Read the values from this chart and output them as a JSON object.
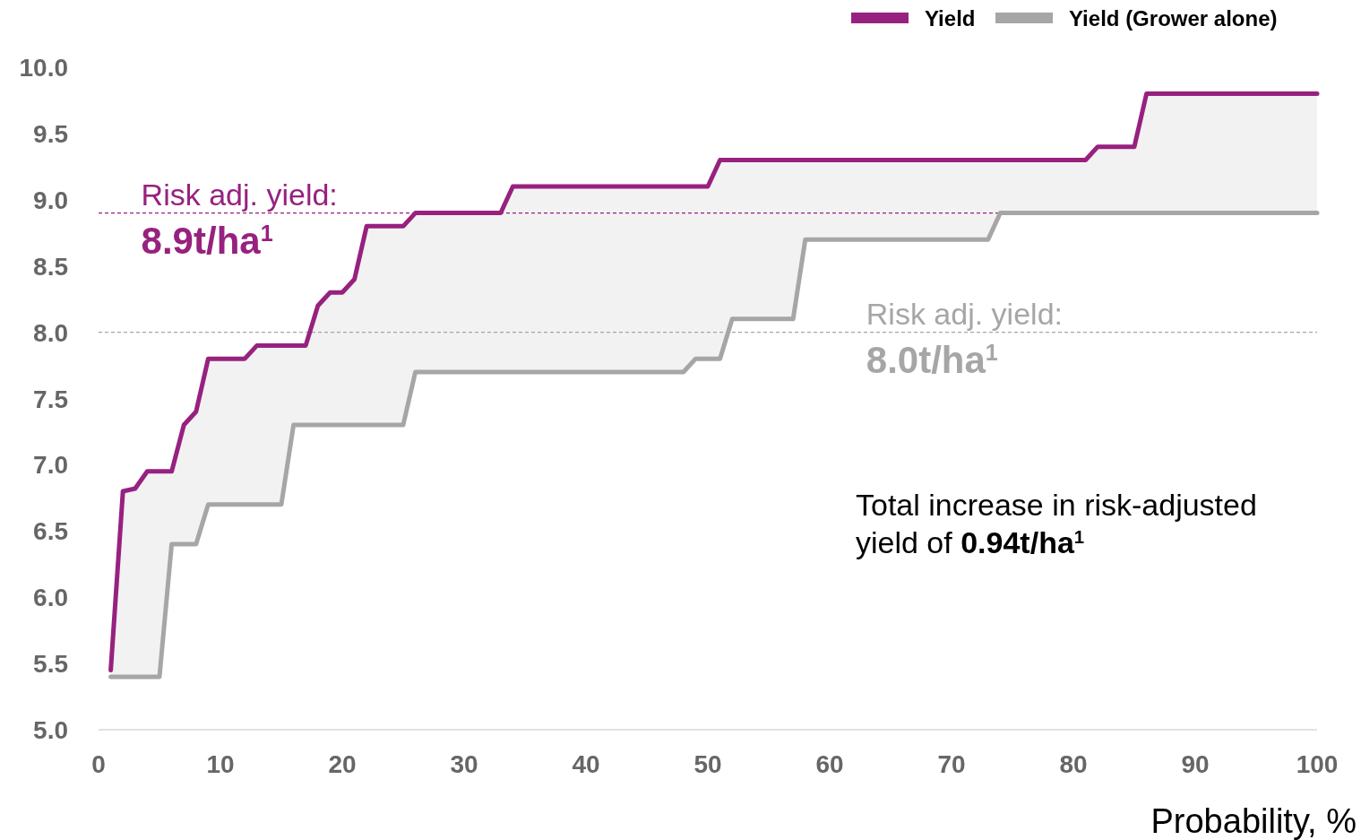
{
  "chart_data": {
    "type": "line",
    "xlabel": "Probability, %",
    "x": [
      1,
      2,
      3,
      4,
      5,
      6,
      7,
      8,
      9,
      12,
      13,
      15,
      16,
      17,
      18,
      19,
      20,
      21,
      22,
      25,
      26,
      33,
      34,
      48,
      49,
      50,
      51,
      52,
      57,
      58,
      73,
      74,
      81,
      82,
      85,
      86,
      100
    ],
    "series": [
      {
        "name": "Yield",
        "color": "#97217f",
        "values": [
          5.45,
          6.8,
          6.82,
          6.95,
          6.95,
          6.95,
          7.3,
          7.4,
          7.8,
          7.8,
          7.9,
          7.9,
          7.9,
          7.9,
          8.2,
          8.3,
          8.3,
          8.4,
          8.8,
          8.8,
          8.9,
          8.9,
          9.1,
          9.1,
          9.1,
          9.1,
          9.3,
          9.3,
          9.3,
          9.3,
          9.3,
          9.3,
          9.3,
          9.4,
          9.4,
          9.8,
          9.8
        ],
        "lower": [
          5.4,
          5.4,
          5.4,
          5.4,
          5.4,
          6.4,
          6.4,
          6.4,
          6.7,
          6.7,
          6.7,
          6.7,
          7.3,
          7.3,
          7.3,
          7.3,
          7.3,
          7.3,
          7.3,
          7.3,
          7.7,
          7.7,
          7.7,
          7.7,
          7.8,
          7.8,
          7.8,
          8.1,
          8.1,
          8.7,
          8.7,
          8.9,
          8.9,
          8.9,
          8.9,
          8.9,
          8.9
        ],
        "upper": [
          5.45,
          6.8,
          6.82,
          6.95,
          6.95,
          6.95,
          7.3,
          7.4,
          7.8,
          7.8,
          7.9,
          7.9,
          7.9,
          7.9,
          8.2,
          8.3,
          8.3,
          8.4,
          8.8,
          8.8,
          8.9,
          8.9,
          9.1,
          9.1,
          9.1,
          9.1,
          9.3,
          9.3,
          9.3,
          9.3,
          9.3,
          9.3,
          9.3,
          9.4,
          9.4,
          9.8,
          9.8
        ]
      },
      {
        "name": "Yield (Grower alone)",
        "color": "#a6a6a6",
        "values": [
          5.4,
          5.4,
          5.4,
          5.4,
          5.4,
          6.4,
          6.4,
          6.4,
          6.7,
          6.7,
          6.7,
          6.7,
          7.3,
          7.3,
          7.3,
          7.3,
          7.3,
          7.3,
          7.3,
          7.3,
          7.7,
          7.7,
          7.7,
          7.7,
          7.8,
          7.8,
          7.8,
          8.1,
          8.1,
          8.7,
          8.7,
          8.9,
          8.9,
          8.9,
          8.9,
          8.9,
          8.9
        ]
      }
    ],
    "xlim": [
      0,
      100
    ],
    "xticks": [
      0,
      10,
      20,
      30,
      40,
      50,
      60,
      70,
      80,
      90,
      100
    ],
    "ylim": [
      5,
      10
    ],
    "yticks": [
      {
        "value": 5,
        "label": "5.0"
      },
      {
        "value": 5.5,
        "label": "5.5"
      },
      {
        "value": 6,
        "label": "6.0"
      },
      {
        "value": 6.5,
        "label": "6.5"
      },
      {
        "value": 7,
        "label": "7.0"
      },
      {
        "value": 7.5,
        "label": "7.5"
      },
      {
        "value": 8,
        "label": "8.0"
      },
      {
        "value": 8.5,
        "label": "8.5"
      },
      {
        "value": 9,
        "label": "9.0"
      },
      {
        "value": 9.5,
        "label": "9.5"
      },
      {
        "value": 10,
        "label": "10.0"
      }
    ],
    "ref_lines": [
      {
        "axis": "y",
        "value": 8.9,
        "label": "Risk adj. yield:",
        "color": "#97217f",
        "line_style": "dashed"
      },
      {
        "axis": "y",
        "value": 8.0,
        "label": "Risk adj. yield:",
        "color": "#a6a6a6",
        "line_style": "dashed"
      }
    ],
    "annotations": [
      {
        "text": "8.9t/ha$^{1}$",
        "x": 3.5,
        "y": 8.9
      },
      {
        "text": "8.0t/ha$^{1}$",
        "x": 63,
        "y": 8.0
      },
      "Total increase in risk-adjusted yield of 0.94t/ha$^{1}$"
    ],
    "legend": "top right",
    "grid": false,
    "marker": "none",
    "line_style": "solid"
  }
}
